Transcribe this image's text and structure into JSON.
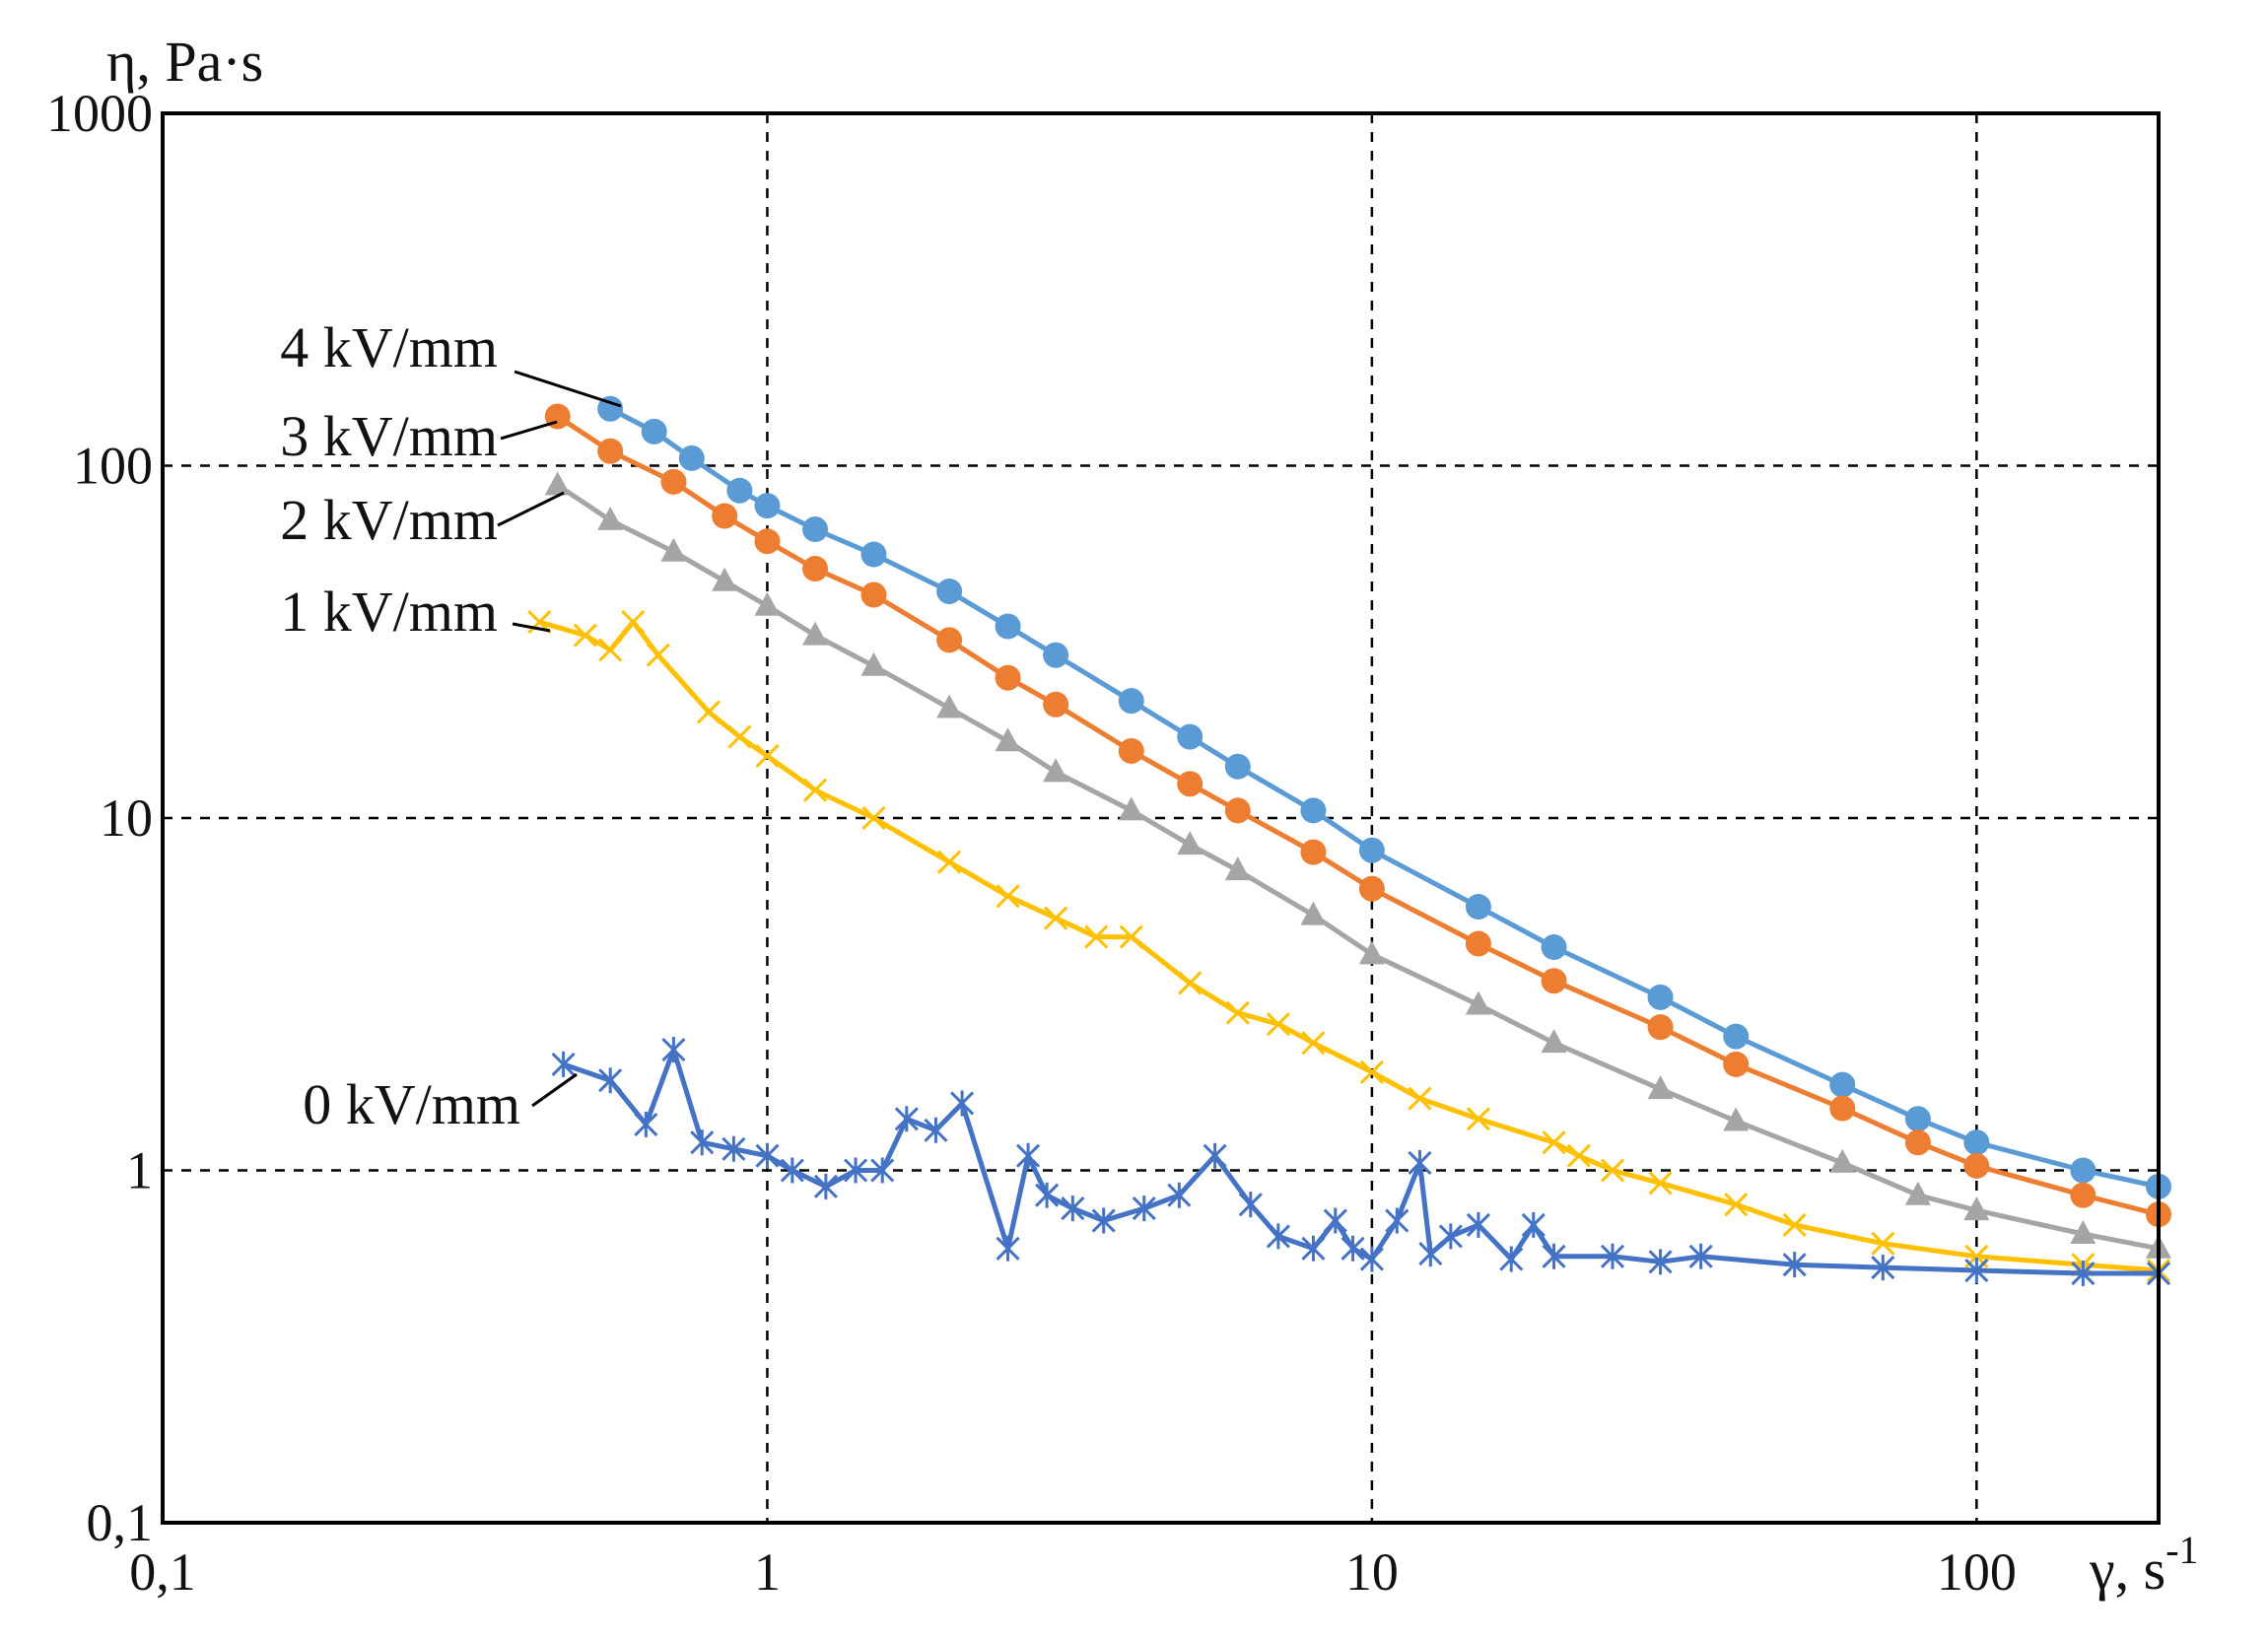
{
  "chart_data": {
    "type": "line",
    "xscale": "log",
    "yscale": "log",
    "xlim": [
      0.1,
      200
    ],
    "ylim": [
      0.1,
      1000
    ],
    "xlabel": "γ, s",
    "xlabel_sup": "-1",
    "ylabel": "η, Pa·s",
    "grid": true,
    "xticks": [
      {
        "value": 0.1,
        "label": "0,1"
      },
      {
        "value": 1,
        "label": "1"
      },
      {
        "value": 10,
        "label": "10"
      },
      {
        "value": 100,
        "label": "100"
      }
    ],
    "yticks": [
      {
        "value": 0.1,
        "label": "0,1"
      },
      {
        "value": 1,
        "label": "1"
      },
      {
        "value": 10,
        "label": "10"
      },
      {
        "value": 100,
        "label": "100"
      },
      {
        "value": 1000,
        "label": "1000"
      }
    ],
    "series": [
      {
        "name": "4 kV/mm",
        "color": "#5b9bd5",
        "marker": "circle",
        "x": [
          0.55,
          0.65,
          0.75,
          0.9,
          1.0,
          1.2,
          1.5,
          2.0,
          2.5,
          3.0,
          4.0,
          5.0,
          6.0,
          8.0,
          10,
          15,
          20,
          30,
          40,
          60,
          80,
          100,
          150,
          200
        ],
        "y": [
          145,
          125,
          105,
          85,
          77,
          66,
          56,
          44,
          35,
          29,
          21.5,
          17,
          14,
          10.5,
          8.1,
          5.6,
          4.3,
          3.1,
          2.4,
          1.75,
          1.4,
          1.2,
          1.0,
          0.9
        ]
      },
      {
        "name": "3 kV/mm",
        "color": "#ed7d31",
        "marker": "circle",
        "x": [
          0.45,
          0.55,
          0.7,
          0.85,
          1.0,
          1.2,
          1.5,
          2.0,
          2.5,
          3.0,
          4.0,
          5.0,
          6.0,
          8.0,
          10,
          15,
          20,
          30,
          40,
          60,
          80,
          100,
          150,
          200
        ],
        "y": [
          138,
          110,
          90,
          72,
          61,
          51,
          43,
          32,
          25,
          21,
          15.5,
          12.5,
          10.5,
          8.0,
          6.3,
          4.4,
          3.45,
          2.55,
          2.0,
          1.5,
          1.2,
          1.03,
          0.85,
          0.75
        ]
      },
      {
        "name": "2 kV/mm",
        "color": "#a5a5a5",
        "marker": "triangle",
        "x": [
          0.45,
          0.55,
          0.7,
          0.85,
          1.0,
          1.2,
          1.5,
          2.0,
          2.5,
          3.0,
          4.0,
          5.0,
          6.0,
          8.0,
          10,
          15,
          20,
          30,
          40,
          60,
          80,
          100,
          150,
          200
        ],
        "y": [
          88,
          70,
          57,
          47,
          40,
          33,
          27,
          20.5,
          16.5,
          13.5,
          10.5,
          8.4,
          7.1,
          5.3,
          4.1,
          2.95,
          2.3,
          1.7,
          1.38,
          1.05,
          0.85,
          0.77,
          0.66,
          0.6
        ]
      },
      {
        "name": "1 kV/mm",
        "color": "#ffc000",
        "marker": "x",
        "x": [
          0.42,
          0.5,
          0.55,
          0.6,
          0.66,
          0.8,
          0.9,
          1.0,
          1.2,
          1.5,
          2.0,
          2.5,
          3.0,
          3.5,
          4.0,
          5.0,
          6.0,
          7.0,
          8.0,
          10,
          12,
          15,
          20,
          22,
          25,
          30,
          40,
          50,
          70,
          100,
          150,
          200
        ],
        "y": [
          36,
          33,
          30,
          36,
          29,
          20,
          17,
          15,
          12,
          10,
          7.5,
          6.0,
          5.2,
          4.6,
          4.6,
          3.4,
          2.8,
          2.6,
          2.3,
          1.9,
          1.6,
          1.4,
          1.2,
          1.1,
          1.0,
          0.92,
          0.8,
          0.7,
          0.62,
          0.57,
          0.54,
          0.52
        ]
      },
      {
        "name": "0 kV/mm",
        "color": "#4472c4",
        "marker": "star",
        "x": [
          0.46,
          0.55,
          0.63,
          0.7,
          0.78,
          0.88,
          1.0,
          1.1,
          1.25,
          1.4,
          1.55,
          1.7,
          1.9,
          2.1,
          2.5,
          2.7,
          2.9,
          3.2,
          3.6,
          4.2,
          4.8,
          5.5,
          6.3,
          7.0,
          8.0,
          8.7,
          9.3,
          10,
          11,
          12,
          12.5,
          13.5,
          15,
          17,
          18.5,
          20,
          25,
          30,
          35,
          50,
          70,
          100,
          150,
          200
        ],
        "y": [
          2.0,
          1.8,
          1.35,
          2.2,
          1.2,
          1.15,
          1.1,
          1.0,
          0.9,
          1.0,
          1.0,
          1.4,
          1.3,
          1.55,
          0.6,
          1.1,
          0.85,
          0.78,
          0.72,
          0.78,
          0.85,
          1.1,
          0.8,
          0.65,
          0.6,
          0.72,
          0.6,
          0.56,
          0.72,
          1.05,
          0.58,
          0.65,
          0.7,
          0.56,
          0.7,
          0.57,
          0.57,
          0.55,
          0.57,
          0.54,
          0.53,
          0.52,
          0.51,
          0.51
        ]
      }
    ],
    "annotations": [
      {
        "text": "4 kV/mm",
        "series": "4 kV/mm"
      },
      {
        "text": "3 kV/mm",
        "series": "3 kV/mm"
      },
      {
        "text": "2 kV/mm",
        "series": "2 kV/mm"
      },
      {
        "text": "1 kV/mm",
        "series": "1 kV/mm"
      },
      {
        "text": "0 kV/mm",
        "series": "0 kV/mm"
      }
    ]
  }
}
